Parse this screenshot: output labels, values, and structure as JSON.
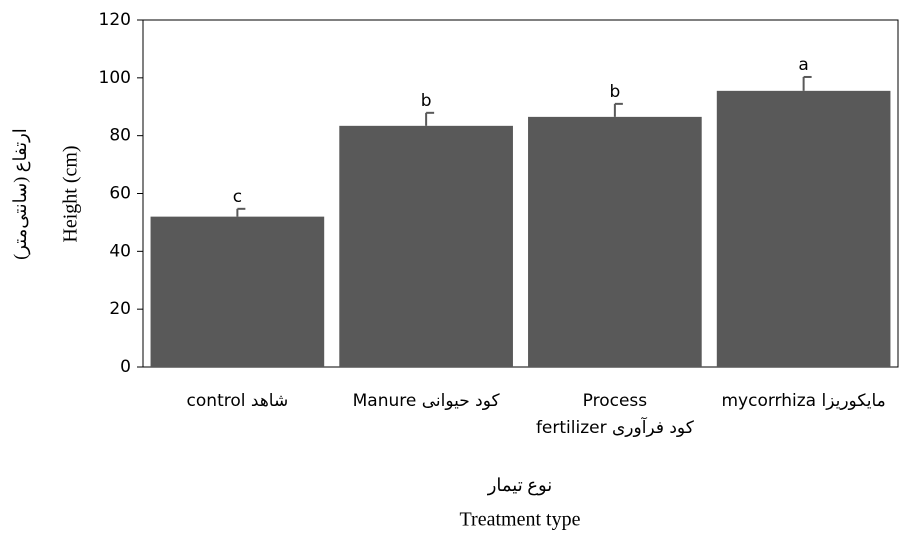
{
  "chart_data": {
    "type": "bar",
    "y_label": "Height (cm)",
    "y_label_fa": "ارتفاع (سانتی‌متر)",
    "x_label_fa": "نوع تیمار",
    "x_label": "Treatment type",
    "categories": [
      "control شاهد",
      "Manure کود حیوانی",
      [
        "Process",
        "fertilizer کود فرآوری"
      ],
      "mycorrhiza مایکوریزا"
    ],
    "values": [
      52,
      83.4,
      86.5,
      95.5
    ],
    "errors": [
      2.7,
      4.5,
      4.5,
      4.8
    ],
    "letters": [
      "c",
      "b",
      "b",
      "a"
    ],
    "color": "#595959",
    "ylim": [
      0,
      120
    ],
    "yticks": [
      0,
      20,
      40,
      60,
      80,
      100,
      120
    ],
    "grid": false
  }
}
